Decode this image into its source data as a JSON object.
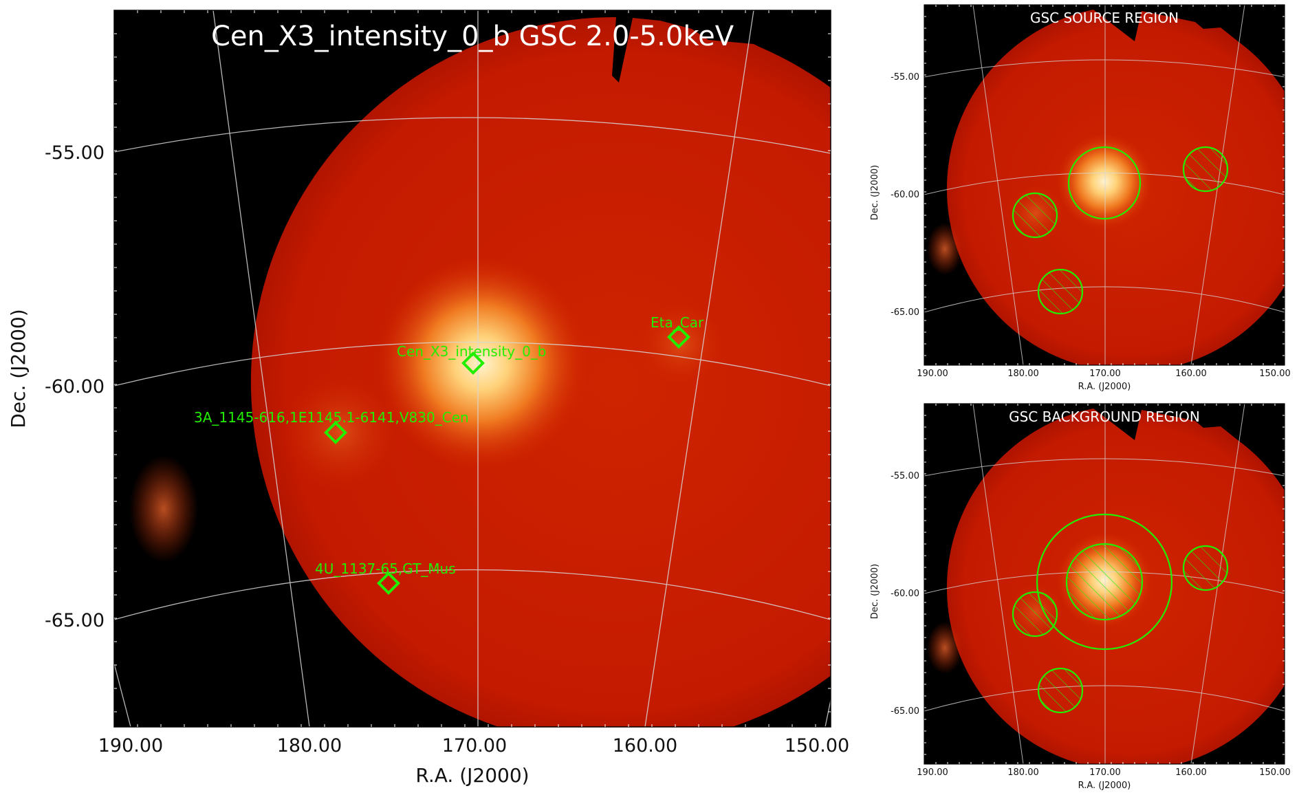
{
  "colors": {
    "background": "#000000",
    "map_base": "#c41a00",
    "source_peak": "#fff2cc",
    "marker": "#22ee00",
    "grid": "#d8d8d8",
    "title_text": "#ffffff"
  },
  "chart_data": [
    {
      "type": "heatmap",
      "title": "Cen_X3_intensity_0_b GSC 2.0-5.0keV",
      "xlabel": "R.A. (J2000)",
      "ylabel": "Dec. (J2000)",
      "x_ticks": [
        "190.00",
        "180.00",
        "170.00",
        "160.00",
        "150.00"
      ],
      "y_ticks": [
        "-55.00",
        "-60.00",
        "-65.00"
      ],
      "grid": true,
      "sources": [
        {
          "label": "Cen_X3_intensity_0_b",
          "ra": 170.3,
          "dec": -60.6
        },
        {
          "label": "Eta_Car",
          "ra": 161.3,
          "dec": -59.7
        },
        {
          "label": "3A_1145-616,1E1145.1-6141,V830_Cen",
          "ra": 176.9,
          "dec": -61.9
        },
        {
          "label": "4U_1137-65,GT_Mus",
          "ra": 174.8,
          "dec": -65.1
        }
      ]
    },
    {
      "type": "heatmap",
      "title": "GSC SOURCE REGION",
      "xlabel": "R.A. (J2000)",
      "ylabel": "Dec. (J2000)",
      "x_ticks": [
        "190.00",
        "180.00",
        "170.00",
        "160.00",
        "150.00"
      ],
      "y_ticks": [
        "-55.00",
        "-60.00",
        "-65.00"
      ],
      "grid": true,
      "regions": [
        "source circle",
        "3 hatched exclusion circles"
      ]
    },
    {
      "type": "heatmap",
      "title": "GSC BACKGROUND REGION",
      "xlabel": "R.A. (J2000)",
      "ylabel": "Dec. (J2000)",
      "x_ticks": [
        "190.00",
        "180.00",
        "170.00",
        "160.00",
        "150.00"
      ],
      "y_ticks": [
        "-55.00",
        "-60.00",
        "-65.00"
      ],
      "grid": true,
      "regions": [
        "background annulus",
        "4 hatched exclusion circles"
      ]
    }
  ]
}
